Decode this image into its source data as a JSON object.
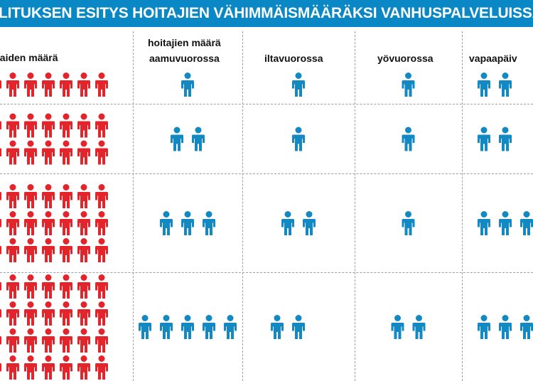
{
  "title": "LITUKSEN ESITYS HOITAJIEN VÄHIMMÄISMÄÄRÄKSI VANHUSPALVELUISSA",
  "header": {
    "group_label": "hoitajien määrä",
    "first_col_label": "kaiden määrä",
    "columns": [
      "aamuvuorossa",
      "iltavuorossa",
      "yövuorossa",
      "vapaapäiv"
    ]
  },
  "colors": {
    "banner": "#0a88c6",
    "resident_icon": "#e3242b",
    "nurse_icon": "#1389c4"
  },
  "icons": {
    "resident": "person-icon-red",
    "nurse": "person-icon-blue"
  },
  "rows": [
    {
      "residents": 7,
      "nurses": {
        "aamuvuorossa": 1,
        "iltavuorossa": 1,
        "yövuorossa": 1,
        "vapaapäiv": 2
      }
    },
    {
      "residents": 14,
      "nurses": {
        "aamuvuorossa": 2,
        "iltavuorossa": 1,
        "yövuorossa": 1,
        "vapaapäiv": 2
      }
    },
    {
      "residents": 21,
      "nurses": {
        "aamuvuorossa": 3,
        "iltavuorossa": 2,
        "yövuorossa": 1,
        "vapaapäiv": 3
      }
    },
    {
      "residents": 28,
      "nurses": {
        "aamuvuorossa": 5,
        "iltavuorossa": 2.5,
        "yövuorossa": 2,
        "vapaapäiv": 4
      }
    }
  ]
}
